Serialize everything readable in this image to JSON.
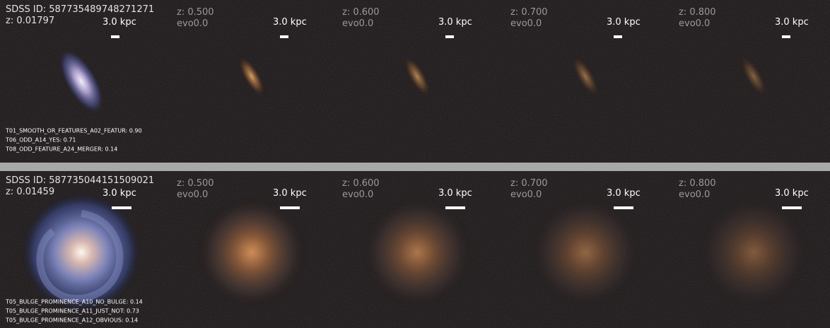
{
  "rows": [
    {
      "sdss_id": "SDSS ID: 587735489748271271",
      "z": "z: 0.01797",
      "scale": "3.0 kpc",
      "labels": [
        "T01_SMOOTH_OR_FEATURES_A02_FEATUR: 0.90",
        "T06_ODD_A14_YES: 0.71",
        "T08_ODD_FEATURE_A24_MERGER: 0.14"
      ],
      "panels": [
        {
          "z": "z: 0.500",
          "evo": "evo0.0",
          "scale": "3.0 kpc"
        },
        {
          "z": "z: 0.600",
          "evo": "evo0.0",
          "scale": "3.0 kpc"
        },
        {
          "z": "z: 0.700",
          "evo": "evo0.0",
          "scale": "3.0 kpc"
        },
        {
          "z": "z: 0.800",
          "evo": "evo0.0",
          "scale": "3.0 kpc"
        }
      ]
    },
    {
      "sdss_id": "SDSS ID: 587735044151509021",
      "z": "z: 0.01459",
      "scale": "3.0 kpc",
      "labels": [
        "T05_BULGE_PROMINENCE_A10_NO_BULGE: 0.14",
        "T05_BULGE_PROMINENCE_A11_JUST_NOT: 0.73",
        "T05_BULGE_PROMINENCE_A12_OBVIOUS: 0.14"
      ],
      "panels": [
        {
          "z": "z: 0.500",
          "evo": "evo0.0",
          "scale": "3.0 kpc"
        },
        {
          "z": "z: 0.600",
          "evo": "evo0.0",
          "scale": "3.0 kpc"
        },
        {
          "z": "z: 0.700",
          "evo": "evo0.0",
          "scale": "3.0 kpc"
        },
        {
          "z": "z: 0.800",
          "evo": "evo0.0",
          "scale": "3.0 kpc"
        }
      ]
    }
  ]
}
